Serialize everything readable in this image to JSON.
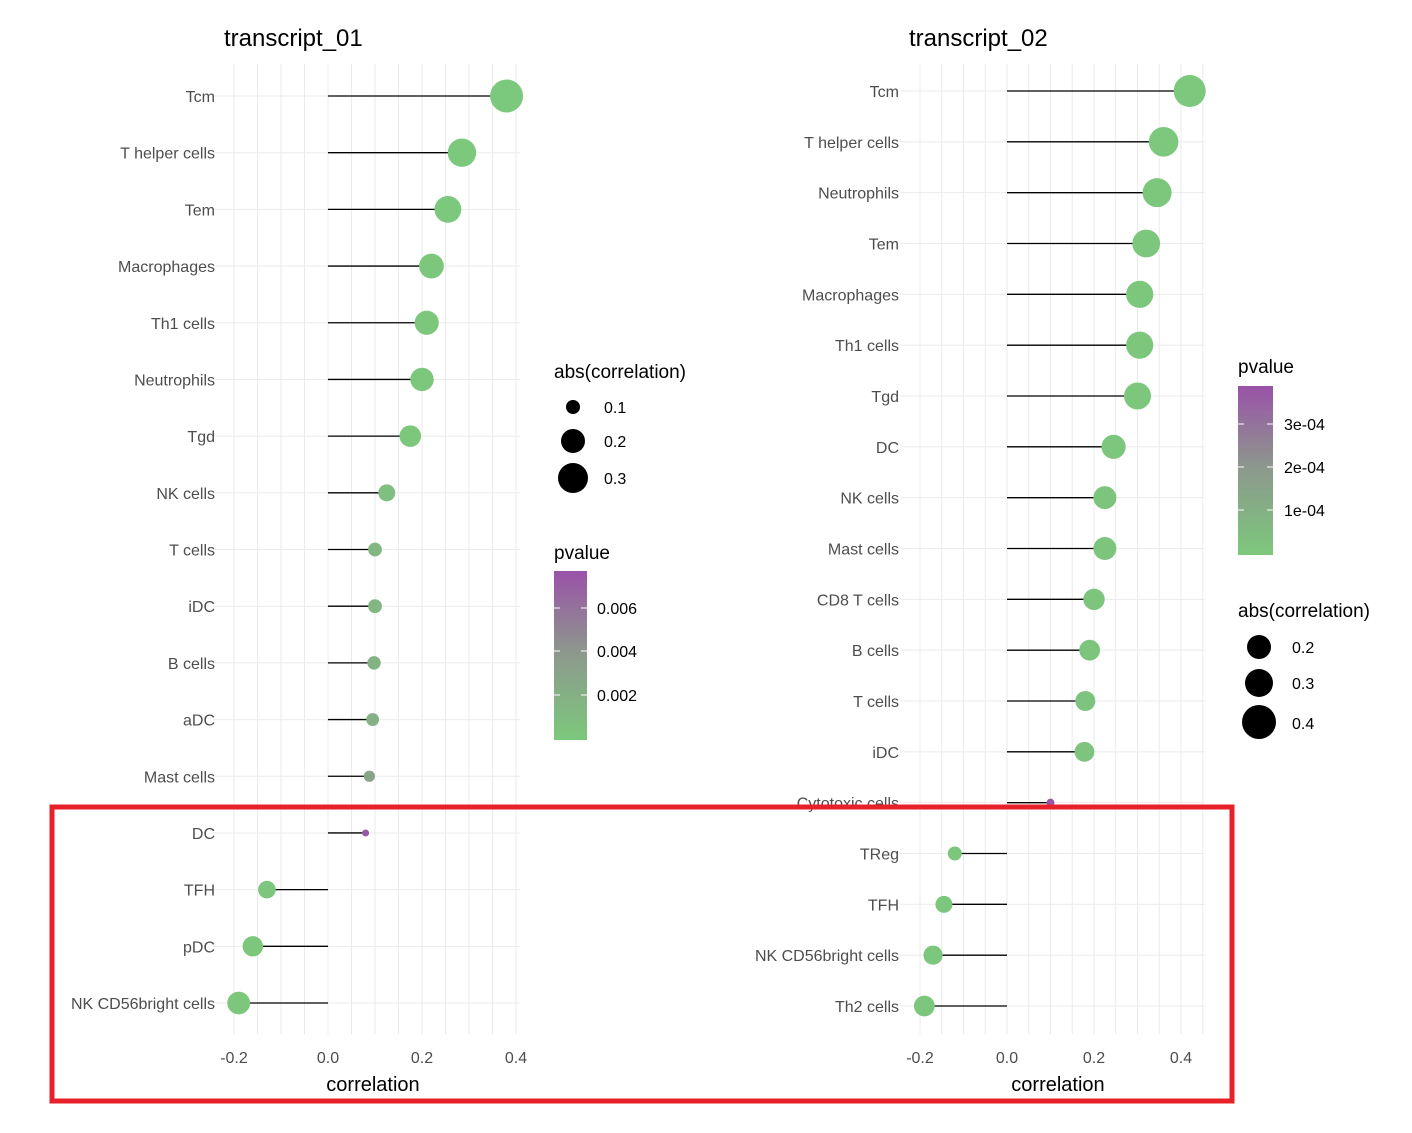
{
  "colors": {
    "low_pvalue": "#7cc87c",
    "mid_pvalue": "#8c9a8c",
    "high_pvalue": "#9a52a8",
    "grid": "#ebebeb",
    "segment": "#000000",
    "highlight_box": "#e8202a"
  },
  "chart_data": [
    {
      "type": "lollipop",
      "title": "transcript_01",
      "xlabel": "correlation",
      "ylabel": "",
      "xlim": [
        -0.2,
        0.4
      ],
      "x_ticks": [
        "-0.2",
        "0.0",
        "0.2",
        "0.4"
      ],
      "grid": true,
      "categories": [
        "Tcm",
        "T helper cells",
        "Tem",
        "Macrophages",
        "Th1 cells",
        "Neutrophils",
        "Tgd",
        "NK cells",
        "T cells",
        "iDC",
        "B cells",
        "aDC",
        "Mast cells",
        "DC",
        "TFH",
        "pDC",
        "NK CD56bright cells"
      ],
      "values": [
        0.38,
        0.285,
        0.255,
        0.22,
        0.21,
        0.2,
        0.175,
        0.125,
        0.1,
        0.1,
        0.098,
        0.095,
        0.088,
        0.08,
        -0.13,
        -0.16,
        -0.19
      ],
      "pvalues": [
        1e-05,
        2e-05,
        3e-05,
        5e-05,
        6e-05,
        8e-05,
        0.0001,
        0.0008,
        0.0015,
        0.0016,
        0.0018,
        0.0022,
        0.0032,
        0.0078,
        0.0002,
        0.00012,
        5e-05
      ],
      "legends": {
        "size": {
          "title": "abs(correlation)",
          "labels": [
            "0.1",
            "0.2",
            "0.3"
          ],
          "values": [
            0.1,
            0.2,
            0.3
          ]
        },
        "color": {
          "title": "pvalue",
          "labels": [
            "0.006",
            "0.004",
            "0.002"
          ],
          "values": [
            0.006,
            0.004,
            0.002
          ],
          "range": [
            0,
            0.008
          ]
        }
      }
    },
    {
      "type": "lollipop",
      "title": "transcript_02",
      "xlabel": "correlation",
      "ylabel": "",
      "xlim": [
        -0.2,
        0.4
      ],
      "x_ticks": [
        "-0.2",
        "0.0",
        "0.2",
        "0.4"
      ],
      "grid": true,
      "categories": [
        "Tcm",
        "T helper cells",
        "Neutrophils",
        "Tem",
        "Macrophages",
        "Th1 cells",
        "Tgd",
        "DC",
        "NK cells",
        "Mast cells",
        "CD8 T cells",
        "B cells",
        "T cells",
        "iDC",
        "Cytotoxic cells",
        "TReg",
        "TFH",
        "NK CD56bright cells",
        "Th2 cells"
      ],
      "values": [
        0.42,
        0.36,
        0.345,
        0.32,
        0.305,
        0.305,
        0.3,
        0.245,
        0.225,
        0.225,
        0.2,
        0.19,
        0.18,
        0.178,
        0.1,
        -0.12,
        -0.145,
        -0.17,
        -0.19
      ],
      "pvalues": [
        1e-06,
        2e-06,
        3e-06,
        4e-06,
        5e-06,
        5e-06,
        6e-06,
        1e-05,
        1.2e-05,
        1.2e-05,
        1.5e-05,
        1.8e-05,
        2e-05,
        2e-05,
        0.00038,
        1e-05,
        1e-05,
        1e-05,
        1e-05
      ],
      "legends": {
        "color": {
          "title": "pvalue",
          "labels": [
            "3e-04",
            "2e-04",
            "1e-04"
          ],
          "values": [
            0.0003,
            0.0002,
            0.0001
          ],
          "range": [
            0,
            0.00039
          ]
        },
        "size": {
          "title": "abs(correlation)",
          "labels": [
            "0.2",
            "0.3",
            "0.4"
          ],
          "values": [
            0.2,
            0.3,
            0.4
          ]
        }
      }
    }
  ]
}
